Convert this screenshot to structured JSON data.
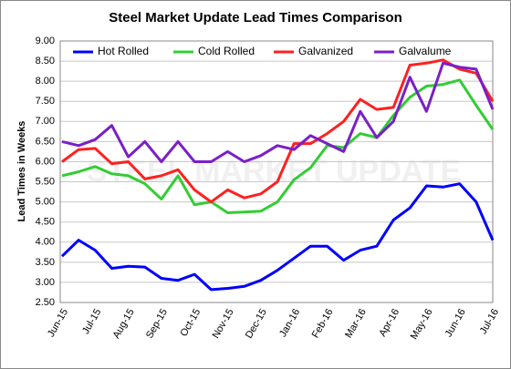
{
  "chart_data": {
    "type": "line",
    "title": "Steel Market Update Lead Times Comparison",
    "y_label": "Lead Times in Weeks",
    "watermark": "STEEL MARKET UPDATE",
    "categories": [
      "Jun-15",
      null,
      "Jul-15",
      null,
      "Aug-15",
      null,
      "Sep-15",
      null,
      "Oct-15",
      null,
      "Nov-15",
      null,
      "Dec-15",
      null,
      "Jan-16",
      null,
      "Feb-16",
      null,
      "Mar-16",
      null,
      "Apr-16",
      null,
      "May-16",
      null,
      "Jun-16",
      null,
      "Jul-16"
    ],
    "series": [
      {
        "name": "Hot Rolled",
        "color": "#0000ff",
        "values": [
          3.65,
          4.05,
          3.8,
          3.35,
          3.4,
          3.38,
          3.1,
          3.05,
          3.2,
          2.82,
          2.85,
          2.9,
          3.05,
          3.3,
          3.6,
          3.9,
          3.9,
          3.55,
          3.8,
          3.9,
          4.55,
          4.85,
          5.4,
          5.37,
          5.45,
          5.0,
          4.05
        ]
      },
      {
        "name": "Cold Rolled",
        "color": "#33cc33",
        "values": [
          5.65,
          5.75,
          5.88,
          5.7,
          5.65,
          5.45,
          5.07,
          5.65,
          4.93,
          5.0,
          4.73,
          4.75,
          4.77,
          5.0,
          5.55,
          5.85,
          6.4,
          6.35,
          6.7,
          6.6,
          7.15,
          7.6,
          7.88,
          7.92,
          8.03,
          7.4,
          6.8
        ]
      },
      {
        "name": "Galvanized",
        "color": "#ff2020",
        "values": [
          6.0,
          6.3,
          6.33,
          5.95,
          6.0,
          5.57,
          5.65,
          5.8,
          5.3,
          5.0,
          5.3,
          5.1,
          5.2,
          5.5,
          6.45,
          6.45,
          6.7,
          7.0,
          7.55,
          7.3,
          7.35,
          8.4,
          8.45,
          8.53,
          8.3,
          8.2,
          7.5
        ]
      },
      {
        "name": "Galvalume",
        "color": "#7a1fc9",
        "values": [
          6.5,
          6.4,
          6.55,
          6.9,
          6.12,
          6.5,
          6.0,
          6.5,
          6.0,
          6.0,
          6.25,
          6.0,
          6.15,
          6.4,
          6.3,
          6.65,
          6.45,
          6.25,
          7.25,
          6.6,
          7.0,
          8.1,
          7.25,
          8.45,
          8.35,
          8.3,
          7.3
        ]
      }
    ],
    "ylim": [
      2.5,
      9
    ],
    "yticks": [
      {
        "value": 2.5,
        "label": "2.50"
      },
      {
        "value": 3,
        "label": "3.00"
      },
      {
        "value": 3.5,
        "label": "3.50"
      },
      {
        "value": 4,
        "label": "4.00"
      },
      {
        "value": 4.5,
        "label": "4.50"
      },
      {
        "value": 5,
        "label": "5.00"
      },
      {
        "value": 5.5,
        "label": "5.50"
      },
      {
        "value": 6,
        "label": "6.00"
      },
      {
        "value": 6.5,
        "label": "6.50"
      },
      {
        "value": 7,
        "label": "7.00"
      },
      {
        "value": 7.5,
        "label": "7.50"
      },
      {
        "value": 8,
        "label": "8.00"
      },
      {
        "value": 8.5,
        "label": "8.50"
      },
      {
        "value": 9,
        "label": "9.00"
      }
    ],
    "grid": true,
    "legend": "top"
  }
}
